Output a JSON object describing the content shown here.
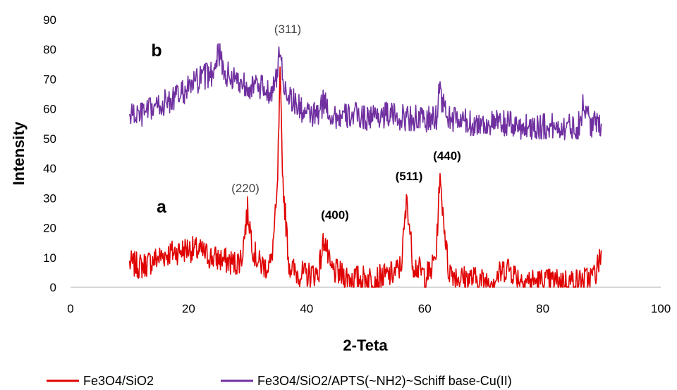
{
  "chart_data": {
    "type": "line",
    "xlabel": "2-Teta",
    "ylabel": "Intensity",
    "xlim": [
      0,
      100
    ],
    "ylim": [
      0,
      90
    ],
    "xticks": [
      0,
      20,
      40,
      60,
      80,
      100
    ],
    "yticks": [
      0,
      10,
      20,
      30,
      40,
      50,
      60,
      70,
      80,
      90
    ],
    "grid": false,
    "legend_position": "bottom",
    "series": [
      {
        "name": "Fe3O4/SiO2",
        "curve_label": "a",
        "color": "#e00000",
        "x": [
          10,
          12,
          14,
          16,
          18,
          20,
          22,
          24,
          26,
          28,
          29,
          30,
          31,
          32,
          33,
          34,
          35,
          35.5,
          36,
          37,
          38,
          40,
          42,
          43,
          44,
          46,
          48,
          50,
          52,
          54,
          55,
          56,
          57,
          58,
          60,
          61,
          62,
          62.5,
          63,
          64,
          66,
          68,
          70,
          72,
          74,
          76,
          78,
          80,
          82,
          84,
          86,
          88,
          89,
          90
        ],
        "y": [
          8,
          7,
          9,
          11,
          12,
          13,
          12,
          10,
          9,
          8,
          10,
          26,
          12,
          8,
          7,
          8,
          30,
          70,
          35,
          8,
          5,
          4,
          5,
          17,
          6,
          4,
          3,
          3,
          3,
          4,
          5,
          7,
          30,
          8,
          4,
          5,
          12,
          36,
          28,
          6,
          3,
          3,
          2,
          3,
          7,
          3,
          2,
          2,
          2,
          2,
          2,
          3,
          5,
          12
        ]
      },
      {
        "name": "Fe3O4/SiO2/APTS(~NH2)~Schiff base-Cu(II)",
        "curve_label": "b",
        "color": "#7030a0",
        "x": [
          10,
          12,
          14,
          16,
          18,
          20,
          22,
          24,
          25,
          26,
          28,
          30,
          32,
          34,
          35,
          35.5,
          36,
          38,
          40,
          42,
          43,
          44,
          46,
          48,
          50,
          52,
          54,
          56,
          58,
          60,
          62,
          62.5,
          63,
          64,
          66,
          68,
          70,
          72,
          74,
          76,
          78,
          80,
          82,
          84,
          86,
          87,
          88,
          90
        ],
        "y": [
          58,
          58,
          60,
          62,
          64,
          67,
          70,
          72,
          80,
          72,
          70,
          68,
          67,
          66,
          70,
          82,
          68,
          62,
          58,
          58,
          63,
          58,
          57,
          58,
          57,
          58,
          58,
          57,
          57,
          56,
          57,
          68,
          62,
          57,
          56,
          55,
          55,
          55,
          55,
          54,
          54,
          54,
          54,
          54,
          54,
          62,
          55,
          55
        ]
      }
    ],
    "annotations": [
      "(311)",
      "(220)",
      "(400)",
      "(511)",
      "(440)"
    ]
  }
}
